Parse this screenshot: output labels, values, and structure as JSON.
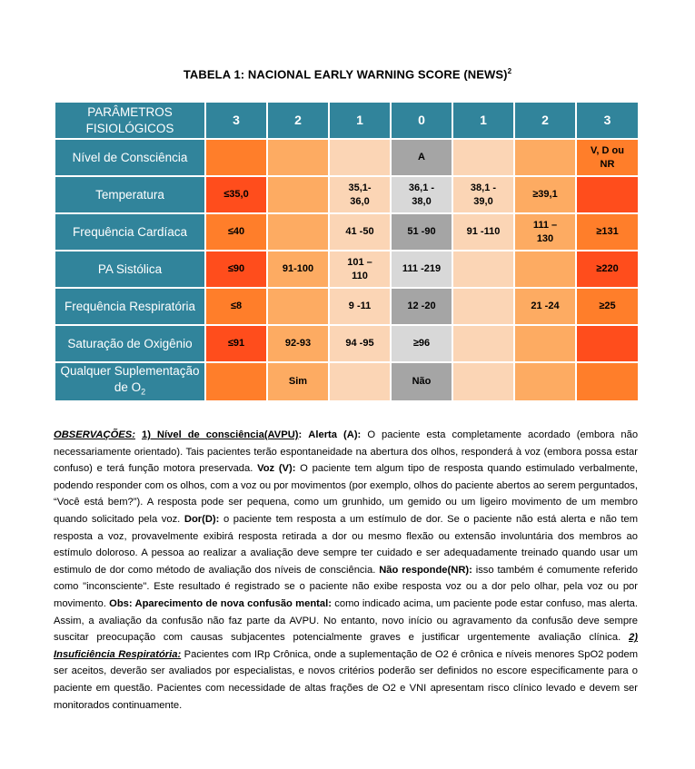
{
  "title": "TABELA 1:  NACIONAL EARLY WARNING SCORE (NEWS)",
  "title_sup": "2",
  "header": {
    "param_label": "PARÂMETROS FISIOLÓGICOS",
    "scores": [
      "3",
      "2",
      "1",
      "0",
      "1",
      "2",
      "3"
    ]
  },
  "rows": [
    {
      "label": "Nível de Consciência",
      "cells": [
        "",
        "",
        "",
        "A",
        "",
        "",
        "V, D ou NR"
      ]
    },
    {
      "label": "Temperatura",
      "cells": [
        "≤35,0",
        "",
        "35,1-36,0",
        "36,1 - 38,0",
        "38,1 - 39,0",
        "≥39,1",
        ""
      ]
    },
    {
      "label": "Frequência Cardíaca",
      "cells": [
        "≤40",
        "",
        "41 -50",
        "51 -90",
        "91 -110",
        "111 – 130",
        "≥131"
      ]
    },
    {
      "label": "PA Sistólica",
      "cells": [
        "≤90",
        "91-100",
        "101 – 110",
        "111 -219",
        "",
        "",
        "≥220"
      ]
    },
    {
      "label": "Frequência Respiratória",
      "cells": [
        "≤8",
        "",
        "9 -11",
        "12 -20",
        "",
        "21 -24",
        "≥25"
      ]
    },
    {
      "label": "Saturação de Oxigênio",
      "cells": [
        "≤91",
        "92-93",
        "94 -95",
        "≥96",
        "",
        "",
        ""
      ]
    },
    {
      "label": "Qualquer Suplementação de O",
      "label_sub": "2",
      "cells": [
        "",
        "Sim",
        "",
        "Não",
        "",
        "",
        ""
      ]
    }
  ],
  "notes": {
    "obs_label": "OBSERVAÇÕES:",
    "n1_label": "1) Nível de consciência(AVPU)",
    "alerta_label": "Alerta (A):",
    "alerta_text": "O paciente esta completamente acordado (embora não necessariamente orientado). Tais pacientes terão espontaneidade na abertura dos olhos, responderá à voz (embora possa estar confuso) e terá função motora preservada.",
    "voz_label": "Voz (V):",
    "voz_text": "O paciente tem algum tipo de resposta quando estimulado verbalmente, podendo responder com os olhos, com a voz ou por movimentos (por exemplo, olhos do paciente abertos ao serem perguntados, “Você está bem?”). A resposta pode ser pequena, como um grunhido, um gemido ou um ligeiro movimento de um membro quando solicitado pela voz.",
    "dor_label": "Dor(D):",
    "dor_text": "o paciente tem resposta a um estímulo de dor. Se o paciente não está alerta e não tem resposta a voz, provavelmente exibirá resposta retirada a dor ou mesmo flexão ou extensão involuntária dos membros ao estímulo doloroso. A pessoa ao realizar a avaliação deve sempre ter cuidado e ser adequadamente treinado quando usar um estimulo de dor como método de avaliação dos níveis de consciência.",
    "nr_label": "Não responde(NR):",
    "nr_text": "isso também é comumente referido como \"inconsciente\". Este resultado é registrado se o paciente não exibe resposta voz ou a dor  pelo olhar, pela voz ou por movimento.",
    "obs2_label": "Obs: Aparecimento de nova confusão mental:",
    "obs2_text": "como indicado acima, um paciente pode estar confuso, mas alerta. Assim, a avaliação da confusão não faz parte da AVPU. No entanto, novo início ou agravamento da confusão deve sempre suscitar preocupação com causas subjacentes potencialmente graves e justificar urgentemente avaliação clínica.",
    "n2_label": "2) Insuficiência Respiratória:",
    "n2_text": "Pacientes com IRp Crônica, onde a suplementação de O2 é crônica e níveis menores SpO2 podem ser aceitos, deverão ser avaliados por especialistas, e novos critérios poderão ser definidos no escore especificamente para o paciente em questão. Pacientes com necessidade de altas frações de O2 e VNI apresentam risco clínico levado e devem ser monitorados continuamente."
  }
}
